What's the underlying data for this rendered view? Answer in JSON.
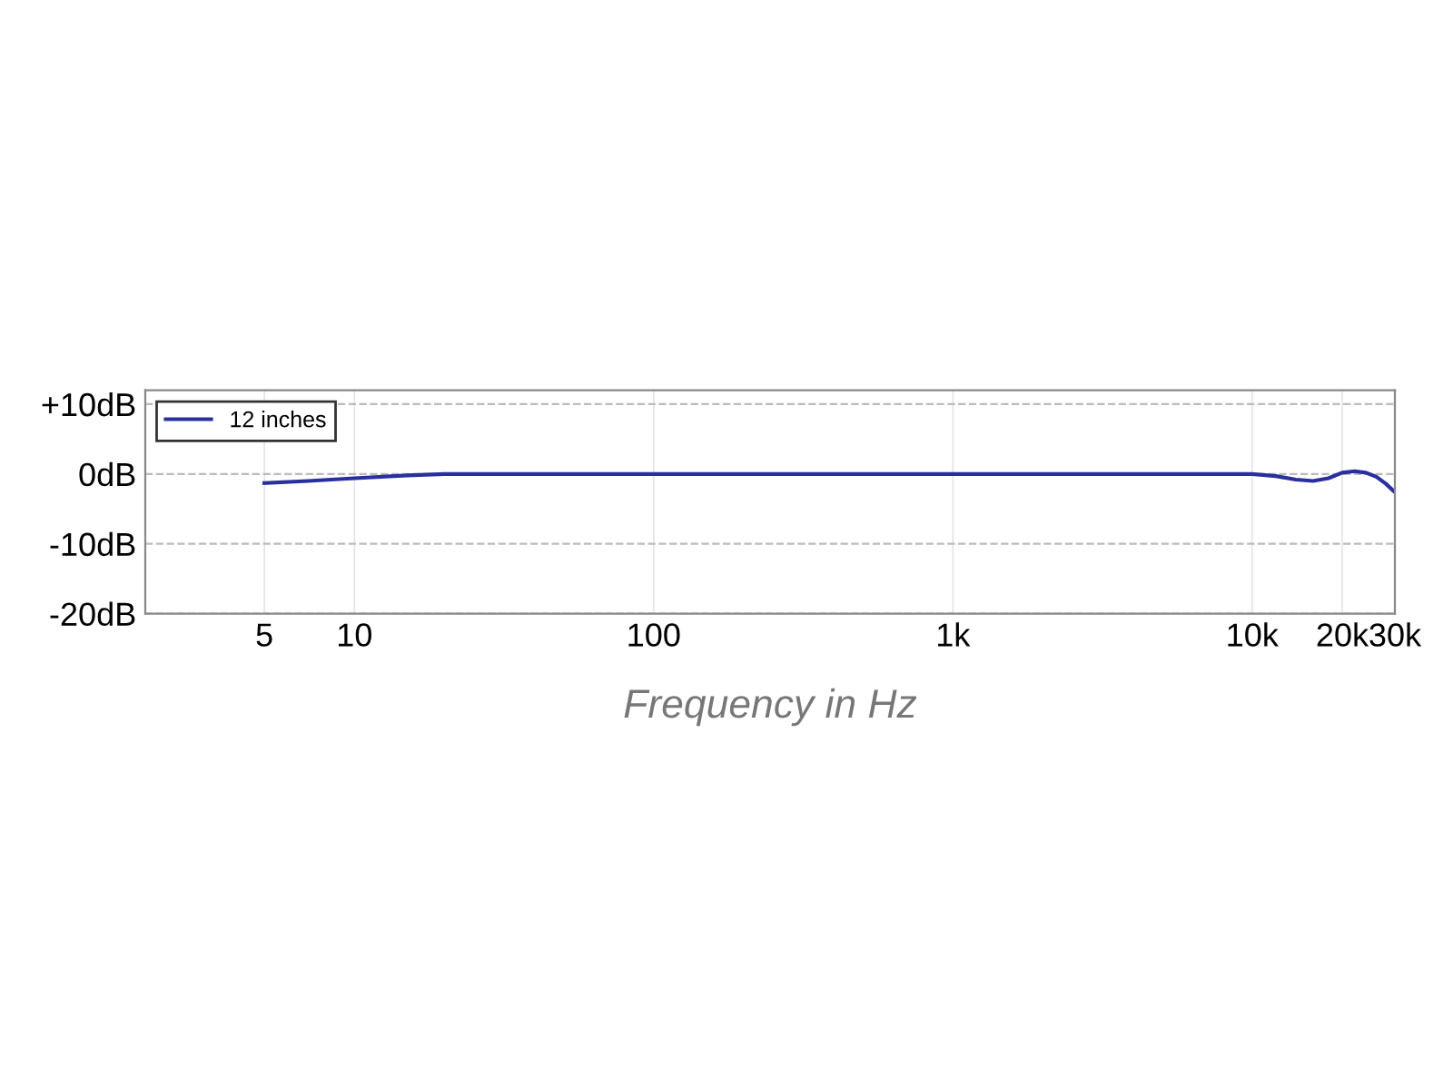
{
  "chart_data": {
    "type": "line",
    "xlabel": "Frequency in Hz",
    "log": "x",
    "xlim": [
      2,
      30000
    ],
    "xticks": [
      5,
      10,
      100,
      {
        "value": 1000,
        "label": "1k"
      },
      {
        "value": 10000,
        "label": "10k"
      },
      {
        "value": 20000,
        "label": "20k"
      },
      {
        "value": 30000,
        "label": "30k"
      }
    ],
    "ylim": [
      -20,
      12
    ],
    "yticks": [
      {
        "value": 10,
        "label": "+10dB"
      },
      {
        "value": 0,
        "label": "0dB"
      },
      {
        "value": -10,
        "label": "-10dB"
      },
      {
        "value": -20,
        "label": "-20dB"
      }
    ],
    "grid": true,
    "legend": "top left",
    "line_style": "solid",
    "marker": "none",
    "series": [
      {
        "name": "12 inches",
        "color": "#2a2fa0",
        "x": [
          5,
          7,
          10,
          15,
          20,
          50,
          100,
          1000,
          5000,
          10000,
          12000,
          14000,
          16000,
          18000,
          20000,
          22000,
          24000,
          26000,
          28000,
          30000
        ],
        "values": [
          -1.3,
          -1,
          -0.6,
          -0.2,
          0,
          0,
          0,
          0,
          0,
          0,
          -0.3,
          -0.8,
          -1,
          -0.6,
          0.2,
          0.4,
          0.2,
          -0.4,
          -1.4,
          -2.6
        ]
      }
    ]
  }
}
